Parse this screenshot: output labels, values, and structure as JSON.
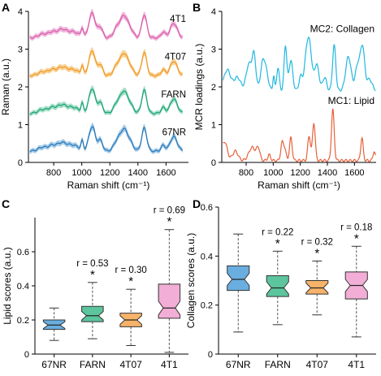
{
  "chart_data": [
    {
      "panel": "A",
      "type": "line",
      "xlabel": "Raman shift (cm⁻¹)",
      "ylabel": "Raman (a.u.)",
      "xlim": [
        620,
        1760
      ],
      "ylim": [
        0,
        4
      ],
      "xticks": [
        800,
        1000,
        1200,
        1400,
        1600
      ],
      "yticks": [
        0,
        1,
        2,
        3,
        4
      ],
      "peaks": [
        {
          "x": 720,
          "w": 30,
          "h": 0.12
        },
        {
          "x": 785,
          "w": 25,
          "h": 0.15
        },
        {
          "x": 855,
          "w": 35,
          "h": 0.25
        },
        {
          "x": 940,
          "w": 40,
          "h": 0.18
        },
        {
          "x": 1003,
          "w": 8,
          "h": 0.28
        },
        {
          "x": 1065,
          "w": 20,
          "h": 0.55
        },
        {
          "x": 1085,
          "w": 16,
          "h": 0.35
        },
        {
          "x": 1130,
          "w": 18,
          "h": 0.35
        },
        {
          "x": 1255,
          "w": 25,
          "h": 0.35
        },
        {
          "x": 1300,
          "w": 22,
          "h": 0.55
        },
        {
          "x": 1340,
          "w": 25,
          "h": 0.3
        },
        {
          "x": 1445,
          "w": 18,
          "h": 0.72
        },
        {
          "x": 1580,
          "w": 15,
          "h": 0.18
        },
        {
          "x": 1655,
          "w": 25,
          "h": 0.45
        }
      ],
      "series": [
        {
          "name": "4T1",
          "offset": 3.0,
          "color": "#d95fac",
          "fill": "#f0b0d8"
        },
        {
          "name": "4T07",
          "offset": 2.0,
          "color": "#f29a28",
          "fill": "#f8cf90"
        },
        {
          "name": "FARN",
          "offset": 1.0,
          "color": "#21a578",
          "fill": "#9bdcc2"
        },
        {
          "name": "67NR",
          "offset": 0.0,
          "color": "#2b7bba",
          "fill": "#9fc6e6"
        }
      ]
    },
    {
      "panel": "B",
      "type": "line",
      "xlabel": "Raman shift (cm⁻¹)",
      "ylabel": "MCR loadings (a.u.)",
      "xlim": [
        620,
        1760
      ],
      "ylim": [
        0,
        4
      ],
      "xticks": [
        800,
        1000,
        1200,
        1400,
        1600
      ],
      "yticks": [
        0,
        1,
        2,
        3,
        4
      ],
      "series": [
        {
          "name": "MC2: Collagen",
          "color": "#21b8e0",
          "baseline": 1.9,
          "peaks": [
            {
              "x": 660,
              "w": 25,
              "h": 0.55
            },
            {
              "x": 735,
              "w": 25,
              "h": 0.35
            },
            {
              "x": 820,
              "w": 20,
              "h": 0.7
            },
            {
              "x": 858,
              "w": 14,
              "h": 0.9
            },
            {
              "x": 920,
              "w": 16,
              "h": 0.6
            },
            {
              "x": 945,
              "w": 18,
              "h": 0.5
            },
            {
              "x": 1003,
              "w": 6,
              "h": 0.4
            },
            {
              "x": 1035,
              "w": 10,
              "h": 0.6
            },
            {
              "x": 1090,
              "w": 10,
              "h": 1.2
            },
            {
              "x": 1130,
              "w": 14,
              "h": 0.8
            },
            {
              "x": 1205,
              "w": 14,
              "h": 0.4
            },
            {
              "x": 1245,
              "w": 14,
              "h": 0.9
            },
            {
              "x": 1270,
              "w": 15,
              "h": 1.1
            },
            {
              "x": 1320,
              "w": 18,
              "h": 0.7
            },
            {
              "x": 1380,
              "w": 14,
              "h": 0.35
            },
            {
              "x": 1450,
              "w": 12,
              "h": 1.2
            },
            {
              "x": 1555,
              "w": 20,
              "h": 0.9
            },
            {
              "x": 1625,
              "w": 18,
              "h": 0.7
            },
            {
              "x": 1660,
              "w": 15,
              "h": 1.1
            },
            {
              "x": 1710,
              "w": 20,
              "h": 0.3
            }
          ]
        },
        {
          "name": "MC1: Lipid",
          "color": "#e8613a",
          "baseline": 0.05,
          "peaks": [
            {
              "x": 640,
              "w": 20,
              "h": 0.5
            },
            {
              "x": 720,
              "w": 20,
              "h": 0.25
            },
            {
              "x": 845,
              "w": 25,
              "h": 0.35
            },
            {
              "x": 890,
              "w": 12,
              "h": 0.3
            },
            {
              "x": 970,
              "w": 10,
              "h": 0.15
            },
            {
              "x": 1065,
              "w": 10,
              "h": 0.45
            },
            {
              "x": 1085,
              "w": 10,
              "h": 0.3
            },
            {
              "x": 1130,
              "w": 10,
              "h": 0.6
            },
            {
              "x": 1265,
              "w": 10,
              "h": 0.65
            },
            {
              "x": 1300,
              "w": 10,
              "h": 1.0
            },
            {
              "x": 1440,
              "w": 10,
              "h": 1.35
            },
            {
              "x": 1655,
              "w": 9,
              "h": 0.6
            },
            {
              "x": 1745,
              "w": 8,
              "h": 0.25
            }
          ]
        }
      ]
    },
    {
      "panel": "C",
      "type": "box",
      "ylabel": "Lipid scores (a.u.)",
      "ylim": [
        0,
        0.8
      ],
      "yticks": [
        0,
        0.2,
        0.4,
        0.6
      ],
      "categories": [
        "67NR",
        "FARN",
        "4T07",
        "4T1"
      ],
      "boxes": [
        {
          "name": "67NR",
          "color": "#6aaee0",
          "whisker_low": 0.08,
          "q1": 0.145,
          "median": 0.17,
          "q3": 0.2,
          "whisker_high": 0.27,
          "notch": 0.02,
          "r": "",
          "sig": false
        },
        {
          "name": "FARN",
          "color": "#5cc59e",
          "whisker_low": 0.09,
          "q1": 0.19,
          "median": 0.225,
          "q3": 0.28,
          "whisker_high": 0.42,
          "notch": 0.025,
          "r": "r = 0.53",
          "sig": true
        },
        {
          "name": "4T07",
          "color": "#f7b36a",
          "whisker_low": 0.05,
          "q1": 0.16,
          "median": 0.2,
          "q3": 0.24,
          "whisker_high": 0.38,
          "notch": 0.025,
          "r": "r = 0.30",
          "sig": true
        },
        {
          "name": "4T1",
          "color": "#f2aed6",
          "whisker_low": 0.01,
          "q1": 0.21,
          "median": 0.27,
          "q3": 0.41,
          "whisker_high": 0.73,
          "notch": 0.04,
          "r": "r = 0.69",
          "sig": true
        }
      ]
    },
    {
      "panel": "D",
      "type": "box",
      "ylabel": "Collagen scores (a.u.)",
      "ylim": [
        0,
        0.6
      ],
      "yticks": [
        0,
        0.2,
        0.4,
        0.6
      ],
      "categories": [
        "67NR",
        "FARN",
        "4T07",
        "4T1"
      ],
      "boxes": [
        {
          "name": "67NR",
          "color": "#6aaee0",
          "whisker_low": 0.09,
          "q1": 0.26,
          "median": 0.305,
          "q3": 0.36,
          "whisker_high": 0.49,
          "notch": 0.025,
          "r": "",
          "sig": false
        },
        {
          "name": "FARN",
          "color": "#5cc59e",
          "whisker_low": 0.12,
          "q1": 0.235,
          "median": 0.27,
          "q3": 0.32,
          "whisker_high": 0.42,
          "notch": 0.025,
          "r": "r = 0.22",
          "sig": true
        },
        {
          "name": "4T07",
          "color": "#f7b36a",
          "whisker_low": 0.16,
          "q1": 0.245,
          "median": 0.27,
          "q3": 0.3,
          "whisker_high": 0.38,
          "notch": 0.02,
          "r": "r = 0.32",
          "sig": true
        },
        {
          "name": "4T1",
          "color": "#f2aed6",
          "whisker_low": 0.07,
          "q1": 0.225,
          "median": 0.28,
          "q3": 0.335,
          "whisker_high": 0.44,
          "notch": 0.025,
          "r": "r = 0.18",
          "sig": true
        }
      ]
    }
  ]
}
